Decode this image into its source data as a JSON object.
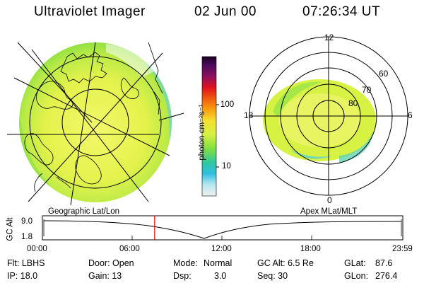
{
  "header": {
    "title": "Ultraviolet Imager",
    "date": "02 Jun 00",
    "time": "07:26:34 UT"
  },
  "colorbar": {
    "unit_label": "photon cm⁻²s⁻¹",
    "ticks": [
      "100",
      "10"
    ],
    "scale": "log"
  },
  "polar_plot": {
    "labels": [
      "12",
      "18",
      "6",
      "0",
      "60",
      "70",
      "80"
    ]
  },
  "timeline": {
    "left_title": "Geographic Lat/Lon",
    "right_title": "Apex MLat/MLT",
    "y_axis_label": "GC Alt",
    "y_ticks": [
      "9.0",
      "1.8"
    ],
    "x_ticks": [
      "00:00",
      "06:00",
      "12:00",
      "18:00",
      "23:59"
    ],
    "current_time_fraction": 0.31
  },
  "info": {
    "row1": {
      "flt": "Flt: LBHS",
      "door": "Door: Open",
      "mode_label": "Mode:",
      "mode_value": "Normal",
      "gc_alt": "GC Alt: 6.5 Re",
      "glat_label": "GLat:",
      "glat_value": "87.6"
    },
    "row2": {
      "ip": "IP: 18.0",
      "gain": "Gain: 13",
      "dsp_label": "Dsp:",
      "dsp_value": "3.0",
      "seq": "Seq: 30",
      "glon_label": "GLon:",
      "glon_value": "276.4"
    }
  },
  "colors": {
    "emission_yellow": "#e6f542",
    "emission_green": "#7fe040",
    "emission_cyan": "#35c9d8",
    "current_time_marker": "#e00000"
  }
}
